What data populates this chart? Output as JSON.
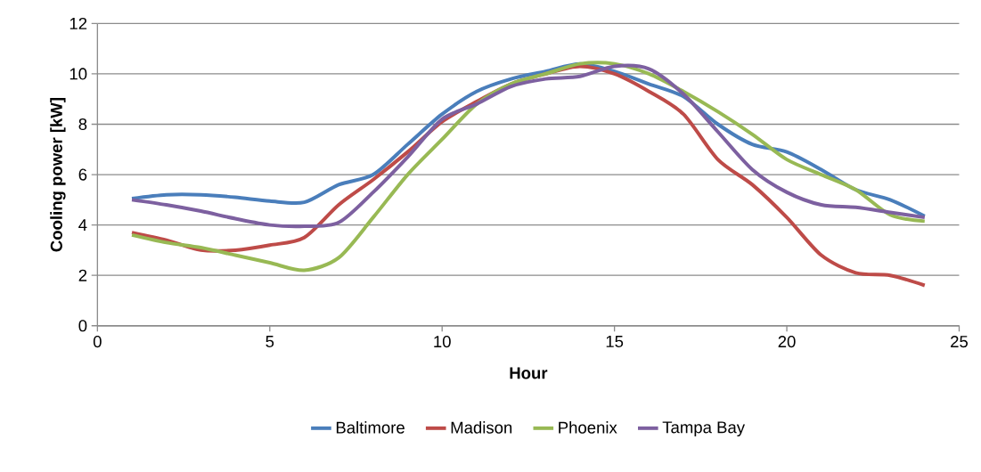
{
  "chart_data": {
    "type": "line",
    "xlabel": "Hour",
    "ylabel": "Cooling power [kW]",
    "x": [
      1,
      2,
      3,
      4,
      5,
      6,
      7,
      8,
      9,
      10,
      11,
      12,
      13,
      14,
      15,
      16,
      17,
      18,
      19,
      20,
      21,
      22,
      23,
      24
    ],
    "series": [
      {
        "name": "Baltimore",
        "color": "#4a7ebb",
        "values": [
          5.05,
          5.2,
          5.2,
          5.1,
          4.95,
          4.9,
          5.6,
          6.0,
          7.2,
          8.4,
          9.3,
          9.8,
          10.1,
          10.4,
          10.1,
          9.6,
          9.1,
          8.0,
          7.2,
          6.9,
          6.2,
          5.4,
          5.0,
          4.35
        ]
      },
      {
        "name": "Madison",
        "color": "#be4b48",
        "values": [
          3.7,
          3.4,
          3.0,
          3.0,
          3.2,
          3.5,
          4.8,
          5.8,
          6.9,
          8.1,
          8.9,
          9.6,
          10.0,
          10.3,
          10.0,
          9.3,
          8.4,
          6.6,
          5.6,
          4.3,
          2.8,
          2.1,
          2.0,
          1.6
        ]
      },
      {
        "name": "Phoenix",
        "color": "#98b954",
        "values": [
          3.6,
          3.3,
          3.1,
          2.8,
          2.5,
          2.2,
          2.7,
          4.3,
          6.0,
          7.4,
          8.8,
          9.6,
          10.0,
          10.4,
          10.4,
          10.0,
          9.3,
          8.5,
          7.6,
          6.6,
          6.0,
          5.4,
          4.4,
          4.15
        ]
      },
      {
        "name": "Tampa Bay",
        "color": "#7d60a0",
        "values": [
          5.0,
          4.8,
          4.55,
          4.25,
          4.0,
          3.95,
          4.1,
          5.3,
          6.7,
          8.2,
          8.8,
          9.5,
          9.8,
          9.9,
          10.3,
          10.2,
          9.2,
          7.7,
          6.2,
          5.3,
          4.8,
          4.7,
          4.5,
          4.3
        ]
      }
    ],
    "xlim": [
      0,
      25
    ],
    "xticks": [
      0,
      5,
      10,
      15,
      20,
      25
    ],
    "ylim": [
      0,
      12
    ],
    "yticks": [
      0,
      2,
      4,
      6,
      8,
      10,
      12
    ],
    "grid": "y",
    "legend": "bottom",
    "marker": "none",
    "line_style": "solid"
  }
}
